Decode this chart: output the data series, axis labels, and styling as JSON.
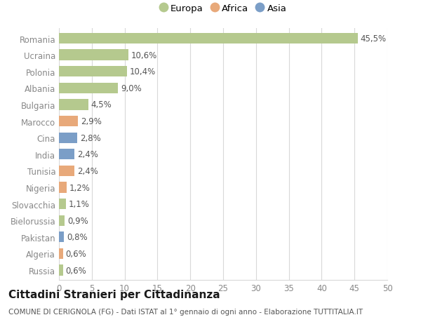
{
  "countries": [
    "Romania",
    "Ucraina",
    "Polonia",
    "Albania",
    "Bulgaria",
    "Marocco",
    "Cina",
    "India",
    "Tunisia",
    "Nigeria",
    "Slovacchia",
    "Bielorussia",
    "Pakistan",
    "Algeria",
    "Russia"
  ],
  "values": [
    45.5,
    10.6,
    10.4,
    9.0,
    4.5,
    2.9,
    2.8,
    2.4,
    2.4,
    1.2,
    1.1,
    0.9,
    0.8,
    0.6,
    0.6
  ],
  "labels": [
    "45,5%",
    "10,6%",
    "10,4%",
    "9,0%",
    "4,5%",
    "2,9%",
    "2,8%",
    "2,4%",
    "2,4%",
    "1,2%",
    "1,1%",
    "0,9%",
    "0,8%",
    "0,6%",
    "0,6%"
  ],
  "continents": [
    "Europa",
    "Europa",
    "Europa",
    "Europa",
    "Europa",
    "Africa",
    "Asia",
    "Asia",
    "Africa",
    "Africa",
    "Europa",
    "Europa",
    "Asia",
    "Africa",
    "Europa"
  ],
  "colors": {
    "Europa": "#b5c98e",
    "Africa": "#e8a97a",
    "Asia": "#7b9ec7"
  },
  "xlim": [
    0,
    50
  ],
  "xticks": [
    0,
    5,
    10,
    15,
    20,
    25,
    30,
    35,
    40,
    45,
    50
  ],
  "title": "Cittadini Stranieri per Cittadinanza",
  "subtitle": "COMUNE DI CERIGNOLA (FG) - Dati ISTAT al 1° gennaio di ogni anno - Elaborazione TUTTITALIA.IT",
  "background_color": "#ffffff",
  "grid_color": "#d8d8d8",
  "bar_height": 0.65,
  "label_fontsize": 8.5,
  "tick_fontsize": 8.5,
  "title_fontsize": 11,
  "subtitle_fontsize": 7.5
}
